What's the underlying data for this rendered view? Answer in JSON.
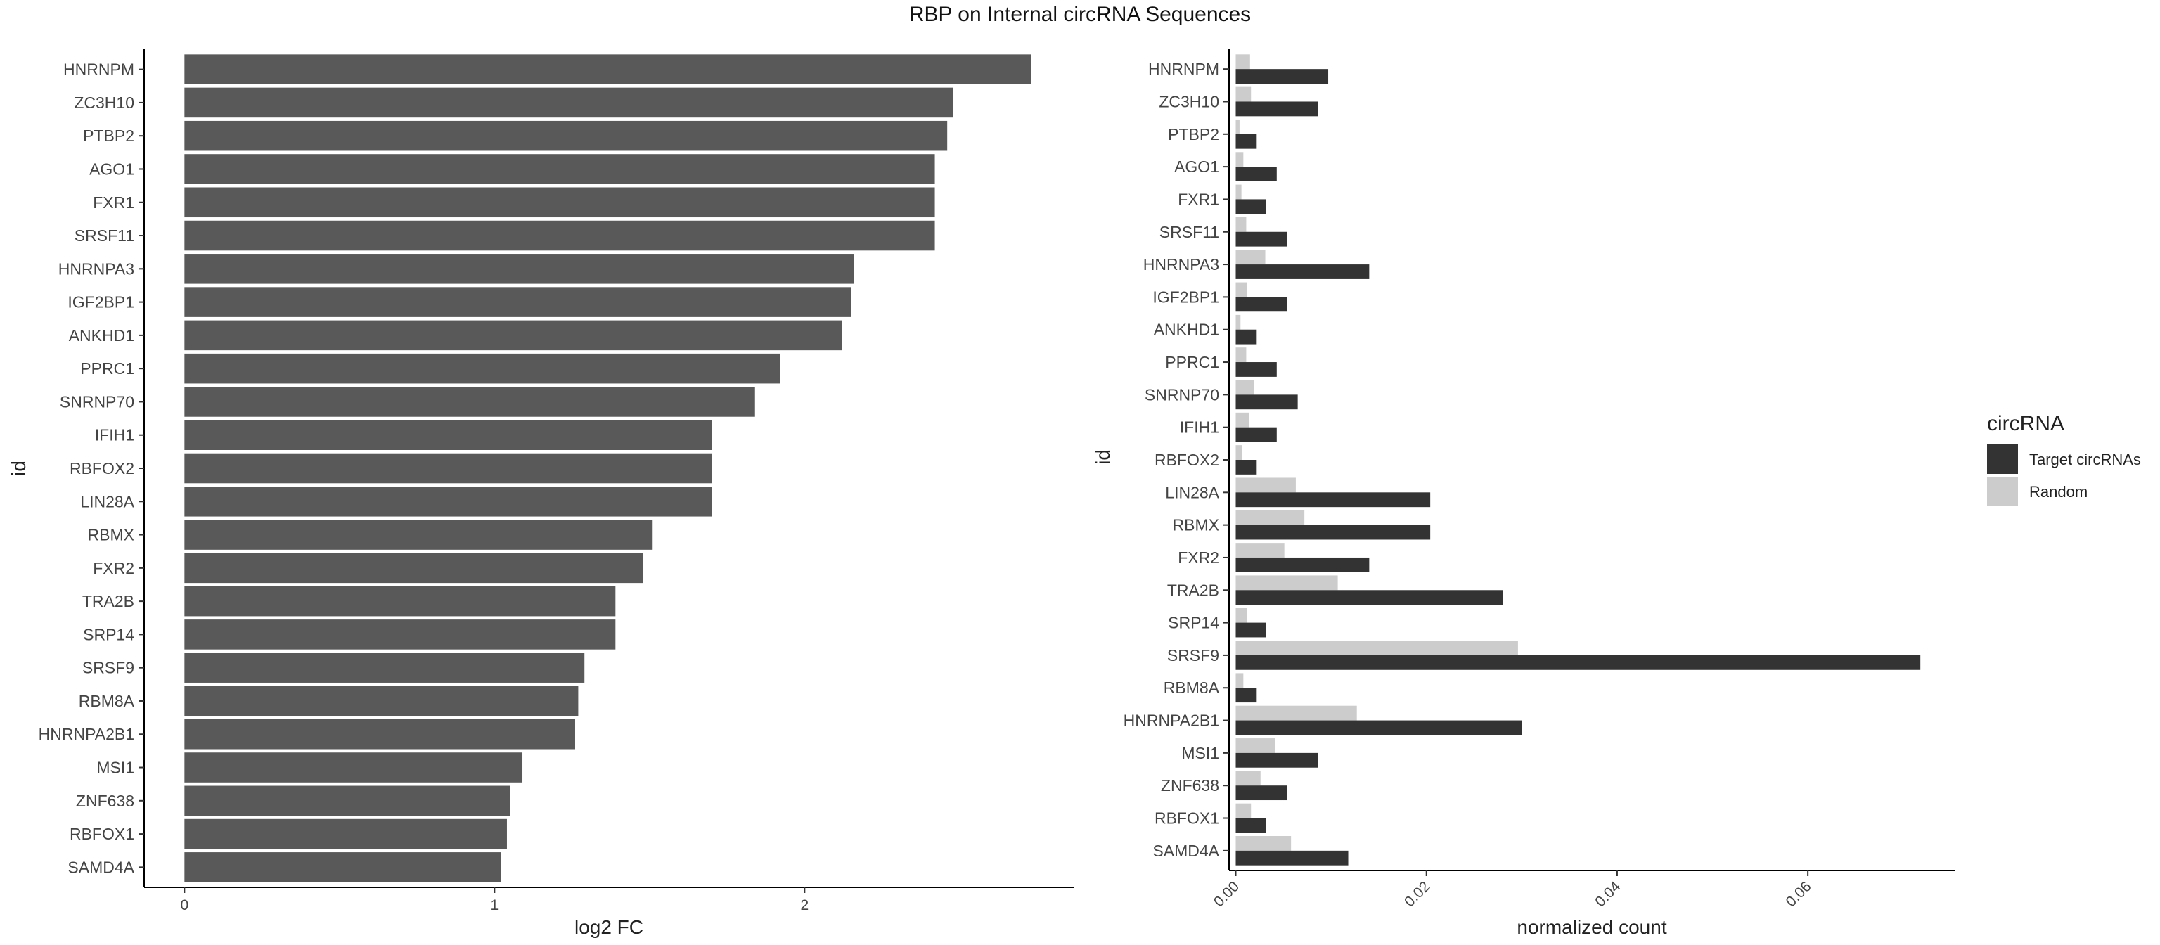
{
  "title": "RBP on Internal circRNA Sequences",
  "chart_data": [
    {
      "type": "bar",
      "orientation": "horizontal",
      "categories": [
        "HNRNPM",
        "ZC3H10",
        "PTBP2",
        "AGO1",
        "FXR1",
        "SRSF11",
        "HNRNPA3",
        "IGF2BP1",
        "ANKHD1",
        "PPRC1",
        "SNRNP70",
        "IFIH1",
        "RBFOX2",
        "LIN28A",
        "RBMX",
        "FXR2",
        "TRA2B",
        "SRP14",
        "SRSF9",
        "RBM8A",
        "HNRNPA2B1",
        "MSI1",
        "ZNF638",
        "RBFOX1",
        "SAMD4A"
      ],
      "values": [
        2.73,
        2.48,
        2.46,
        2.42,
        2.42,
        2.42,
        2.16,
        2.15,
        2.12,
        1.92,
        1.84,
        1.7,
        1.7,
        1.7,
        1.51,
        1.48,
        1.39,
        1.39,
        1.29,
        1.27,
        1.26,
        1.09,
        1.05,
        1.04,
        1.02
      ],
      "xlabel": "log2 FC",
      "ylabel": "id",
      "xlim": [
        -0.13,
        2.87
      ],
      "xticks": [
        "0",
        "1",
        "2"
      ],
      "bar_color": "#595959"
    },
    {
      "type": "bar",
      "orientation": "horizontal",
      "categories": [
        "HNRNPM",
        "ZC3H10",
        "PTBP2",
        "AGO1",
        "FXR1",
        "SRSF11",
        "HNRNPA3",
        "IGF2BP1",
        "ANKHD1",
        "PPRC1",
        "SNRNP70",
        "IFIH1",
        "RBFOX2",
        "LIN28A",
        "RBMX",
        "FXR2",
        "TRA2B",
        "SRP14",
        "SRSF9",
        "RBM8A",
        "HNRNPA2B1",
        "MSI1",
        "ZNF638",
        "RBFOX1",
        "SAMD4A"
      ],
      "series": [
        {
          "name": "Target circRNAs",
          "color": "#333333",
          "values": [
            0.0097,
            0.0086,
            0.0022,
            0.0043,
            0.0032,
            0.0054,
            0.014,
            0.0054,
            0.0022,
            0.0043,
            0.0065,
            0.0043,
            0.0022,
            0.0204,
            0.0204,
            0.014,
            0.028,
            0.0032,
            0.0718,
            0.0022,
            0.03,
            0.0086,
            0.0054,
            0.0032,
            0.0118
          ]
        },
        {
          "name": "Random",
          "color": "#cccccc",
          "values": [
            0.0015,
            0.0016,
            0.0004,
            0.0008,
            0.0006,
            0.0011,
            0.0031,
            0.0012,
            0.0005,
            0.0011,
            0.0019,
            0.0014,
            0.0007,
            0.0063,
            0.0072,
            0.0051,
            0.0107,
            0.0012,
            0.0296,
            0.0008,
            0.0127,
            0.0041,
            0.0026,
            0.0016,
            0.0058
          ]
        }
      ],
      "xlabel": "normalized count",
      "ylabel": "id",
      "xlim": [
        -0.0007,
        0.0754
      ],
      "xticks": [
        "0.00",
        "0.02",
        "0.04",
        "0.06"
      ],
      "legend": {
        "title": "circRNA",
        "position": "right"
      }
    }
  ]
}
